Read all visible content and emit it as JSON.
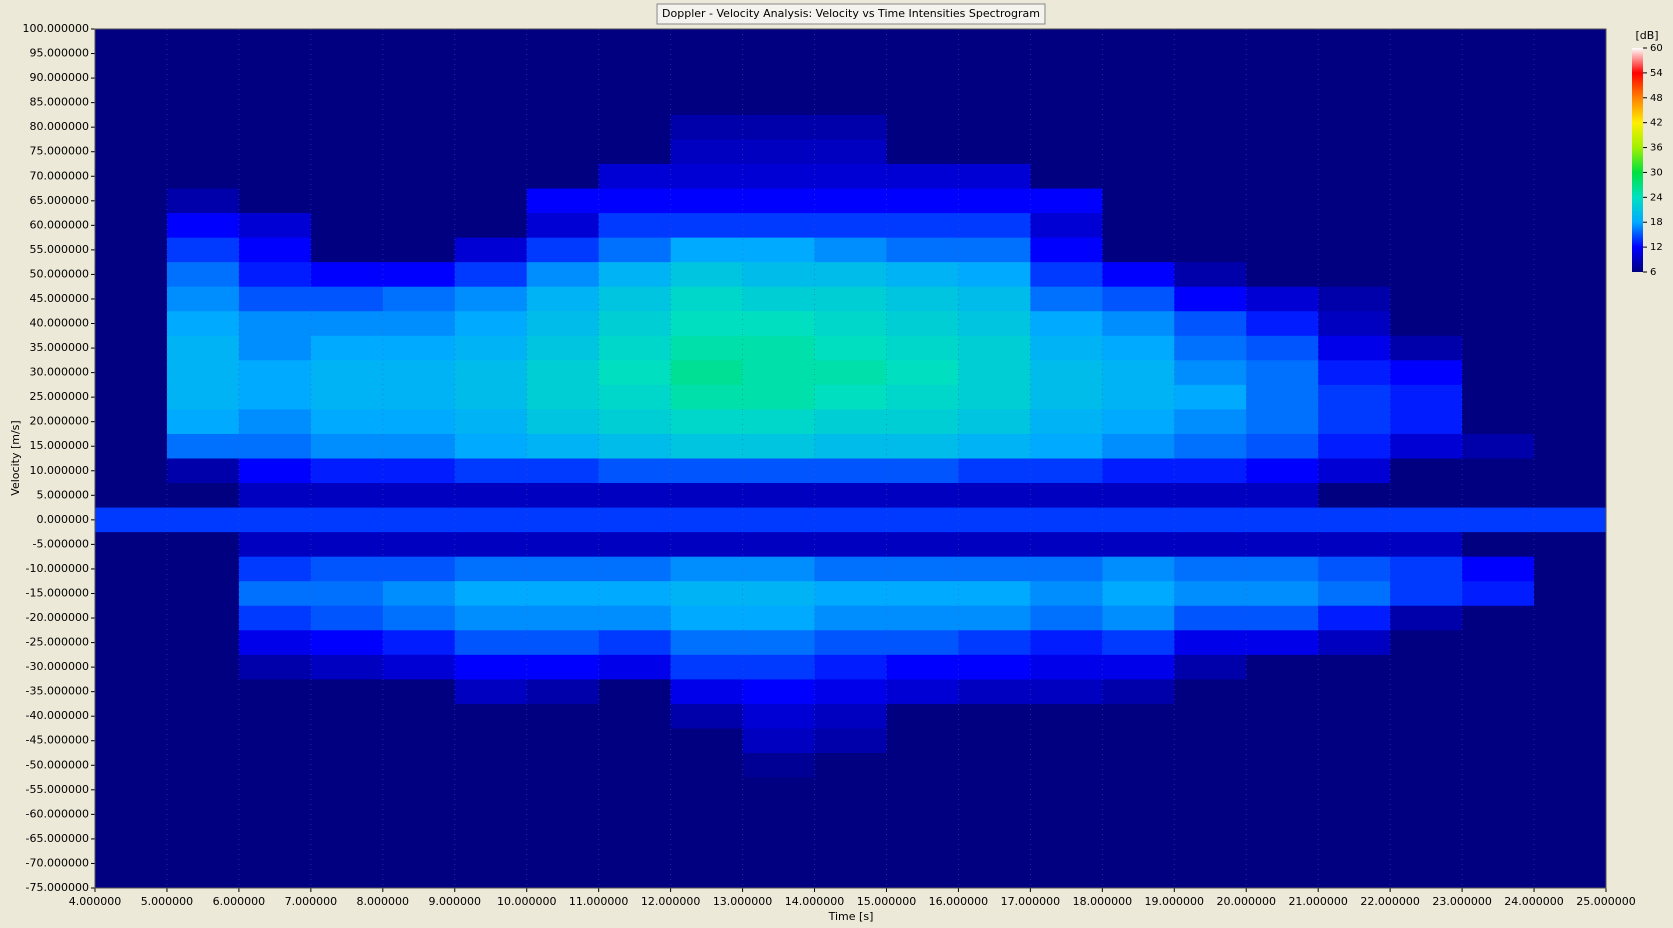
{
  "chart_data": {
    "type": "heatmap",
    "title": "Doppler - Velocity Analysis: Velocity vs Time Intensities Spectrogram",
    "x_label": "Time [s]",
    "y_label": "Velocity [m/s]",
    "xlim": [
      4,
      25
    ],
    "ylim": [
      -75,
      100
    ],
    "grid": true,
    "xticks": [
      {
        "value": 4,
        "label": "4.000000"
      },
      {
        "value": 5,
        "label": "5.000000"
      },
      {
        "value": 6,
        "label": "6.000000"
      },
      {
        "value": 7,
        "label": "7.000000"
      },
      {
        "value": 8,
        "label": "8.000000"
      },
      {
        "value": 9,
        "label": "9.000000"
      },
      {
        "value": 10,
        "label": "10.000000"
      },
      {
        "value": 11,
        "label": "11.000000"
      },
      {
        "value": 12,
        "label": "12.000000"
      },
      {
        "value": 13,
        "label": "13.000000"
      },
      {
        "value": 14,
        "label": "14.000000"
      },
      {
        "value": 15,
        "label": "15.000000"
      },
      {
        "value": 16,
        "label": "16.000000"
      },
      {
        "value": 17,
        "label": "17.000000"
      },
      {
        "value": 18,
        "label": "18.000000"
      },
      {
        "value": 19,
        "label": "19.000000"
      },
      {
        "value": 20,
        "label": "20.000000"
      },
      {
        "value": 21,
        "label": "21.000000"
      },
      {
        "value": 22,
        "label": "22.000000"
      },
      {
        "value": 23,
        "label": "23.000000"
      },
      {
        "value": 24,
        "label": "24.000000"
      },
      {
        "value": 25,
        "label": "25.000000"
      }
    ],
    "yticks": [
      {
        "value": 100,
        "label": "100.000000"
      },
      {
        "value": 95,
        "label": "95.000000"
      },
      {
        "value": 90,
        "label": "90.000000"
      },
      {
        "value": 85,
        "label": "85.000000"
      },
      {
        "value": 80,
        "label": "80.000000"
      },
      {
        "value": 75,
        "label": "75.000000"
      },
      {
        "value": 70,
        "label": "70.000000"
      },
      {
        "value": 65,
        "label": "65.000000"
      },
      {
        "value": 60,
        "label": "60.000000"
      },
      {
        "value": 55,
        "label": "55.000000"
      },
      {
        "value": 50,
        "label": "50.000000"
      },
      {
        "value": 45,
        "label": "45.000000"
      },
      {
        "value": 40,
        "label": "40.000000"
      },
      {
        "value": 35,
        "label": "35.000000"
      },
      {
        "value": 30,
        "label": "30.000000"
      },
      {
        "value": 25,
        "label": "25.000000"
      },
      {
        "value": 20,
        "label": "20.000000"
      },
      {
        "value": 15,
        "label": "15.000000"
      },
      {
        "value": 10,
        "label": "10.000000"
      },
      {
        "value": 5,
        "label": "5.000000"
      },
      {
        "value": 0,
        "label": "0.000000"
      },
      {
        "value": -5,
        "label": "-5.000000"
      },
      {
        "value": -10,
        "label": "-10.000000"
      },
      {
        "value": -15,
        "label": "-15.000000"
      },
      {
        "value": -20,
        "label": "-20.000000"
      },
      {
        "value": -25,
        "label": "-25.000000"
      },
      {
        "value": -30,
        "label": "-30.000000"
      },
      {
        "value": -35,
        "label": "-35.000000"
      },
      {
        "value": -40,
        "label": "-40.000000"
      },
      {
        "value": -45,
        "label": "-45.000000"
      },
      {
        "value": -50,
        "label": "-50.000000"
      },
      {
        "value": -55,
        "label": "-55.000000"
      },
      {
        "value": -60,
        "label": "-60.000000"
      },
      {
        "value": -65,
        "label": "-65.000000"
      },
      {
        "value": -70,
        "label": "-70.000000"
      },
      {
        "value": -75,
        "label": "-75.000000"
      }
    ],
    "colorbar": {
      "label": "[dB]",
      "ticks": [
        60,
        54,
        48,
        42,
        36,
        30,
        24,
        18,
        12,
        6
      ],
      "colors": [
        "#ffffff",
        "#ff0000",
        "#ff8000",
        "#ffee00",
        "#a0f000",
        "#00e040",
        "#00e0c0",
        "#00aaff",
        "#0000ff",
        "#000080"
      ]
    },
    "x": [
      4.5,
      5.5,
      6.5,
      7.5,
      8.5,
      9.5,
      10.5,
      11.5,
      12.5,
      13.5,
      14.5,
      15.5,
      16.5,
      17.5,
      18.5,
      19.5,
      20.5,
      21.5,
      22.5,
      23.5,
      24.5
    ],
    "y": [
      100,
      95,
      90,
      85,
      80,
      75,
      70,
      65,
      60,
      55,
      50,
      45,
      40,
      35,
      30,
      25,
      20,
      15,
      10,
      5,
      0,
      -5,
      -10,
      -15,
      -20,
      -25,
      -30,
      -35,
      -40,
      -45,
      -50,
      -55,
      -60,
      -65,
      -70,
      -75
    ],
    "z": [
      [
        6,
        6,
        6,
        6,
        6,
        6,
        6,
        6,
        6,
        6,
        6,
        6,
        6,
        6,
        6,
        6,
        6,
        6,
        6,
        6,
        6
      ],
      [
        6,
        6,
        6,
        6,
        6,
        6,
        6,
        6,
        6,
        6,
        6,
        6,
        6,
        6,
        6,
        6,
        6,
        6,
        6,
        6,
        6
      ],
      [
        6,
        6,
        6,
        6,
        6,
        6,
        6,
        6,
        6,
        6,
        6,
        6,
        6,
        6,
        6,
        6,
        6,
        6,
        6,
        6,
        6
      ],
      [
        6,
        6,
        6,
        6,
        6,
        6,
        6,
        6,
        6,
        6,
        6,
        6,
        6,
        6,
        6,
        6,
        6,
        6,
        6,
        6,
        6
      ],
      [
        6,
        6,
        6,
        6,
        6,
        6,
        6,
        6,
        8,
        8,
        8,
        6,
        6,
        6,
        6,
        6,
        6,
        6,
        6,
        6,
        6
      ],
      [
        6,
        6,
        6,
        6,
        6,
        6,
        6,
        6,
        9,
        9,
        9,
        6,
        6,
        6,
        6,
        6,
        6,
        6,
        6,
        6,
        6
      ],
      [
        6,
        6,
        6,
        6,
        6,
        6,
        6,
        10,
        10,
        10,
        10,
        10,
        10,
        6,
        6,
        6,
        6,
        6,
        6,
        6,
        6
      ],
      [
        6,
        8,
        6,
        6,
        6,
        6,
        12,
        12,
        12,
        12,
        12,
        12,
        12,
        12,
        6,
        6,
        6,
        6,
        6,
        6,
        6
      ],
      [
        6,
        12,
        10,
        6,
        6,
        6,
        10,
        14,
        14,
        14,
        14,
        14,
        14,
        10,
        6,
        6,
        6,
        6,
        6,
        6,
        6
      ],
      [
        6,
        14,
        12,
        6,
        6,
        10,
        14,
        16,
        18,
        18,
        17,
        16,
        16,
        12,
        6,
        6,
        6,
        6,
        6,
        6,
        6
      ],
      [
        6,
        16,
        13,
        12,
        12,
        14,
        17,
        19,
        21,
        20,
        20,
        19,
        18,
        14,
        12,
        8,
        6,
        6,
        6,
        6,
        6
      ],
      [
        6,
        17,
        15,
        15,
        16,
        17,
        19,
        21,
        23,
        22,
        22,
        21,
        20,
        16,
        15,
        12,
        10,
        8,
        6,
        6,
        6
      ],
      [
        6,
        18,
        17,
        17,
        17,
        18,
        20,
        22,
        24,
        24,
        23,
        22,
        21,
        18,
        17,
        15,
        13,
        9,
        6,
        6,
        6
      ],
      [
        6,
        19,
        17,
        18,
        18,
        19,
        21,
        23,
        25,
        25,
        24,
        23,
        22,
        19,
        18,
        16,
        15,
        11,
        8,
        6,
        6
      ],
      [
        6,
        19,
        18,
        19,
        19,
        20,
        22,
        24,
        26,
        25,
        25,
        24,
        22,
        20,
        19,
        17,
        16,
        13,
        12,
        6,
        6
      ],
      [
        6,
        19,
        18,
        19,
        19,
        20,
        22,
        23,
        25,
        25,
        24,
        23,
        22,
        20,
        19,
        18,
        16,
        14,
        13,
        6,
        6
      ],
      [
        6,
        18,
        17,
        18,
        18,
        19,
        21,
        22,
        23,
        23,
        22,
        22,
        21,
        19,
        18,
        17,
        16,
        14,
        13,
        6,
        6
      ],
      [
        6,
        16,
        16,
        17,
        17,
        18,
        19,
        20,
        21,
        21,
        20,
        20,
        19,
        18,
        17,
        16,
        15,
        13,
        10,
        8,
        6
      ],
      [
        6,
        8,
        12,
        13,
        13,
        14,
        14,
        15,
        15,
        15,
        15,
        15,
        14,
        14,
        13,
        13,
        12,
        10,
        6,
        6,
        6
      ],
      [
        6,
        6,
        9,
        9,
        9,
        9,
        9,
        9,
        9,
        9,
        9,
        9,
        9,
        9,
        9,
        9,
        9,
        6,
        6,
        6,
        6
      ],
      [
        14,
        14,
        14,
        14,
        14,
        14,
        14,
        14,
        14,
        14,
        14,
        14,
        14,
        14,
        14,
        14,
        14,
        14,
        14,
        14,
        14
      ],
      [
        6,
        6,
        9,
        9,
        9,
        9,
        9,
        9,
        9,
        9,
        9,
        9,
        9,
        9,
        9,
        9,
        9,
        9,
        9,
        6,
        6
      ],
      [
        6,
        6,
        14,
        15,
        15,
        16,
        16,
        16,
        17,
        17,
        16,
        16,
        16,
        16,
        17,
        16,
        16,
        15,
        14,
        12,
        6
      ],
      [
        6,
        6,
        16,
        16,
        17,
        18,
        18,
        18,
        19,
        19,
        18,
        18,
        18,
        17,
        18,
        17,
        17,
        16,
        14,
        13,
        6
      ],
      [
        6,
        6,
        14,
        15,
        16,
        17,
        17,
        17,
        18,
        18,
        17,
        17,
        17,
        16,
        17,
        15,
        15,
        13,
        8,
        6,
        6
      ],
      [
        6,
        6,
        11,
        12,
        13,
        15,
        15,
        14,
        16,
        16,
        15,
        15,
        14,
        13,
        14,
        11,
        11,
        9,
        6,
        6,
        6
      ],
      [
        6,
        6,
        8,
        9,
        10,
        12,
        12,
        11,
        14,
        14,
        13,
        12,
        12,
        11,
        11,
        8,
        6,
        6,
        6,
        6,
        6
      ],
      [
        6,
        6,
        6,
        6,
        6,
        9,
        8,
        6,
        11,
        12,
        11,
        10,
        9,
        9,
        8,
        6,
        6,
        6,
        6,
        6,
        6
      ],
      [
        6,
        6,
        6,
        6,
        6,
        6,
        6,
        6,
        8,
        10,
        9,
        6,
        6,
        6,
        6,
        6,
        6,
        6,
        6,
        6,
        6
      ],
      [
        6,
        6,
        6,
        6,
        6,
        6,
        6,
        6,
        6,
        9,
        8,
        6,
        6,
        6,
        6,
        6,
        6,
        6,
        6,
        6,
        6
      ],
      [
        6,
        6,
        6,
        6,
        6,
        6,
        6,
        6,
        6,
        7,
        6,
        6,
        6,
        6,
        6,
        6,
        6,
        6,
        6,
        6,
        6
      ],
      [
        6,
        6,
        6,
        6,
        6,
        6,
        6,
        6,
        6,
        6,
        6,
        6,
        6,
        6,
        6,
        6,
        6,
        6,
        6,
        6,
        6
      ],
      [
        6,
        6,
        6,
        6,
        6,
        6,
        6,
        6,
        6,
        6,
        6,
        6,
        6,
        6,
        6,
        6,
        6,
        6,
        6,
        6,
        6
      ],
      [
        6,
        6,
        6,
        6,
        6,
        6,
        6,
        6,
        6,
        6,
        6,
        6,
        6,
        6,
        6,
        6,
        6,
        6,
        6,
        6,
        6
      ],
      [
        6,
        6,
        6,
        6,
        6,
        6,
        6,
        6,
        6,
        6,
        6,
        6,
        6,
        6,
        6,
        6,
        6,
        6,
        6,
        6,
        6
      ],
      [
        6,
        6,
        6,
        6,
        6,
        6,
        6,
        6,
        6,
        6,
        6,
        6,
        6,
        6,
        6,
        6,
        6,
        6,
        6,
        6,
        6
      ]
    ]
  }
}
